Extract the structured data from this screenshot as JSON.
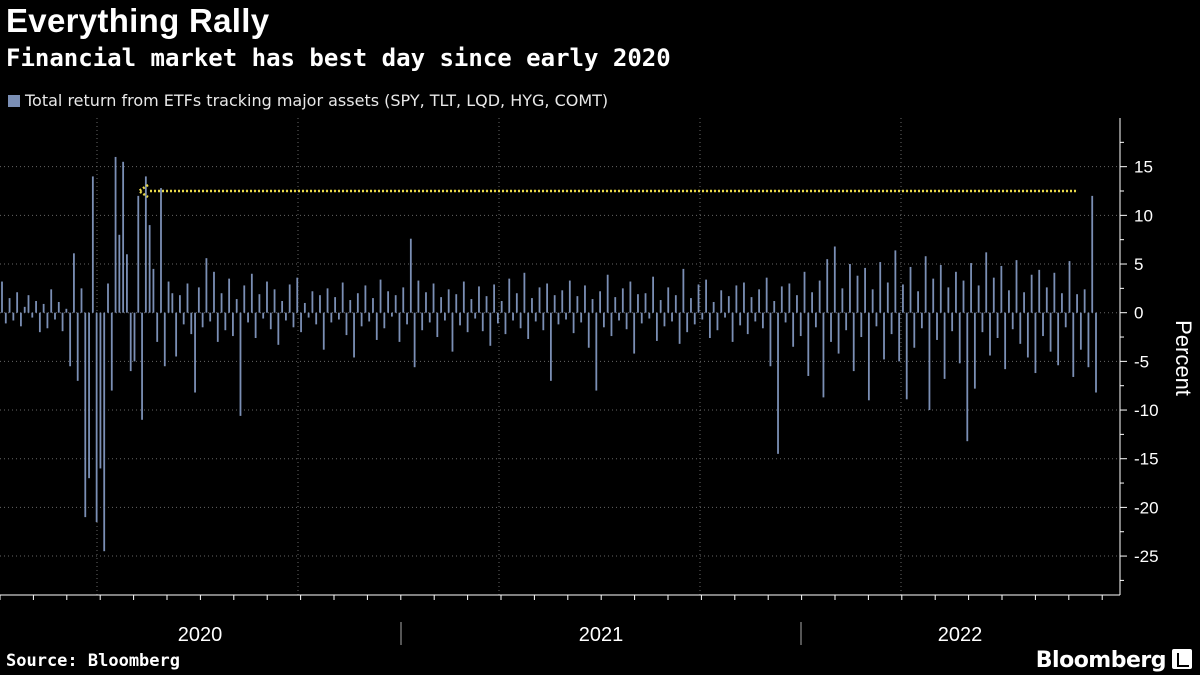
{
  "header": {
    "title": "Everything Rally",
    "subtitle": "Financial market has best day since early 2020"
  },
  "legend": {
    "label": "Total return from ETFs tracking major assets (SPY, TLT, LQD, HYG, COMT)",
    "color": "#7b8fb5"
  },
  "footer": {
    "source": "Source: Bloomberg",
    "brand": "Bloomberg"
  },
  "chart_data": {
    "type": "bar",
    "title": "Everything Rally",
    "subtitle": "Financial market has best day since early 2020",
    "ylabel": "Percent",
    "ylim": [
      -29,
      20
    ],
    "yticks": [
      15,
      10,
      5,
      0,
      -5,
      -10,
      -15,
      -20,
      -25
    ],
    "xlabels": [
      "2020",
      "2021",
      "2022"
    ],
    "x_range": [
      "2019-11",
      "2022-11"
    ],
    "annotation": {
      "type": "dotted-line-arrow",
      "value": 12.5,
      "from": "2022-11",
      "to": "2020-05",
      "color": "#e8d84a"
    },
    "series": [
      {
        "name": "Total return from ETFs tracking major assets (SPY, TLT, LQD, HYG, COMT)",
        "color": "#7b8fb5",
        "values": [
          3.2,
          -1.1,
          1.5,
          -0.8,
          2.1,
          -1.4,
          0.6,
          1.8,
          -0.5,
          1.2,
          -2.0,
          0.9,
          -1.6,
          2.4,
          -0.7,
          1.1,
          -1.9,
          0.4,
          -5.5,
          6.1,
          -7.0,
          2.5,
          -21.0,
          -17.0,
          14.0,
          -21.5,
          -16.0,
          -24.5,
          3.0,
          -8.0,
          16.0,
          8.0,
          15.5,
          6.0,
          -6.0,
          -5.0,
          12.0,
          -11.0,
          14.0,
          9.0,
          4.5,
          -3.0,
          12.8,
          -5.5,
          3.2,
          2.0,
          -4.5,
          1.8,
          -1.2,
          3.0,
          -2.2,
          -8.2,
          2.6,
          -1.5,
          5.6,
          -0.9,
          4.2,
          -3.0,
          2.0,
          -1.8,
          3.5,
          -2.4,
          1.4,
          -10.6,
          2.8,
          -1.0,
          4.0,
          -2.6,
          1.9,
          -0.6,
          3.2,
          -1.7,
          2.4,
          -3.3,
          1.2,
          -0.8,
          2.9,
          -1.5,
          3.6,
          -2.0,
          1.0,
          -0.5,
          2.2,
          -1.2,
          1.8,
          -3.8,
          2.5,
          -1.0,
          1.6,
          -0.7,
          3.1,
          -2.3,
          1.3,
          -4.6,
          2.0,
          -1.4,
          2.8,
          -0.9,
          1.5,
          -2.8,
          3.4,
          -1.6,
          2.2,
          -0.4,
          1.8,
          -3.0,
          2.6,
          -1.2,
          7.6,
          -5.6,
          3.3,
          -1.8,
          2.1,
          -1.0,
          3.0,
          -2.5,
          1.6,
          -0.8,
          2.4,
          -4.0,
          1.9,
          -1.3,
          3.2,
          -2.0,
          1.4,
          -0.6,
          2.7,
          -1.9,
          1.7,
          -3.4,
          2.9,
          -1.1,
          1.2,
          -2.2,
          3.5,
          -0.8,
          2.0,
          -1.6,
          4.1,
          -2.7,
          1.5,
          -0.9,
          2.6,
          -1.8,
          3.0,
          -7.0,
          1.8,
          -1.2,
          2.3,
          -0.7,
          3.3,
          -2.1,
          1.7,
          -1.0,
          2.8,
          -3.6,
          1.4,
          -8.0,
          2.2,
          -1.5,
          3.9,
          -2.4,
          1.6,
          -0.8,
          2.5,
          -1.7,
          3.2,
          -4.2,
          1.9,
          -1.1,
          2.0,
          -0.6,
          3.7,
          -2.9,
          1.3,
          -1.4,
          2.6,
          -0.9,
          1.8,
          -3.2,
          4.5,
          -2.0,
          1.5,
          -1.2,
          2.9,
          -0.7,
          3.4,
          -2.6,
          1.1,
          -1.8,
          2.3,
          -0.5,
          1.7,
          -3.0,
          2.8,
          -1.3,
          3.1,
          -2.2,
          1.6,
          -0.9,
          2.4,
          -1.6,
          3.6,
          -5.5,
          1.2,
          -14.5,
          2.7,
          -1.0,
          3.0,
          -3.5,
          1.8,
          -2.4,
          4.2,
          -6.5,
          2.1,
          -1.5,
          3.3,
          -8.7,
          5.5,
          -3.0,
          6.8,
          -4.2,
          2.5,
          -1.8,
          5.0,
          -6.0,
          3.8,
          -2.5,
          4.6,
          -9.0,
          2.4,
          -1.4,
          5.2,
          -4.8,
          3.1,
          -2.2,
          6.4,
          -5.0,
          2.9,
          -8.9,
          4.7,
          -3.6,
          2.2,
          -1.6,
          5.8,
          -10.0,
          3.5,
          -2.8,
          4.9,
          -6.8,
          2.6,
          -1.9,
          4.2,
          -5.2,
          3.3,
          -13.2,
          5.1,
          -7.8,
          2.8,
          -2.0,
          6.2,
          -4.4,
          3.6,
          -2.6,
          4.8,
          -5.8,
          2.3,
          -1.7,
          5.4,
          -3.2,
          2.1,
          -4.6,
          3.9,
          -6.2,
          4.4,
          -2.4,
          2.6,
          -4.0,
          4.1,
          -5.4,
          2.0,
          -1.5,
          5.3,
          -6.6,
          1.9,
          -3.8,
          2.4,
          -5.6,
          12.0,
          -8.2
        ]
      }
    ]
  }
}
